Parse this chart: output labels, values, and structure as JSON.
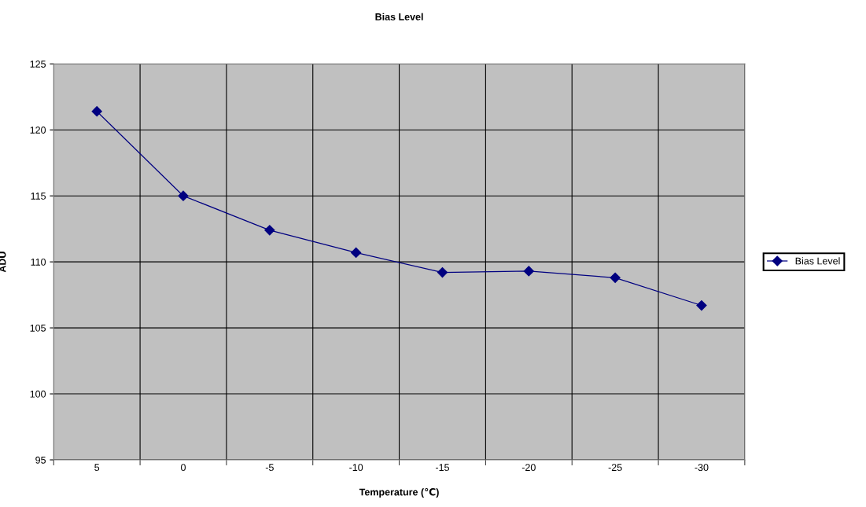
{
  "chart_data": {
    "type": "line",
    "title": "Bias Level",
    "xlabel": "Temperature (℃)",
    "ylabel": "ADU",
    "categories": [
      "5",
      "0",
      "-5",
      "-10",
      "-15",
      "-20",
      "-25",
      "-30"
    ],
    "series": [
      {
        "name": "Bias Level",
        "color": "#000080",
        "values": [
          121.4,
          115.0,
          112.4,
          110.7,
          109.2,
          109.3,
          108.8,
          106.7
        ]
      }
    ],
    "ylim": [
      95,
      125
    ],
    "yticks": [
      95,
      100,
      105,
      110,
      115,
      120,
      125
    ],
    "grid": true,
    "legend": "right",
    "marker": "diamond",
    "line_style": "solid"
  }
}
